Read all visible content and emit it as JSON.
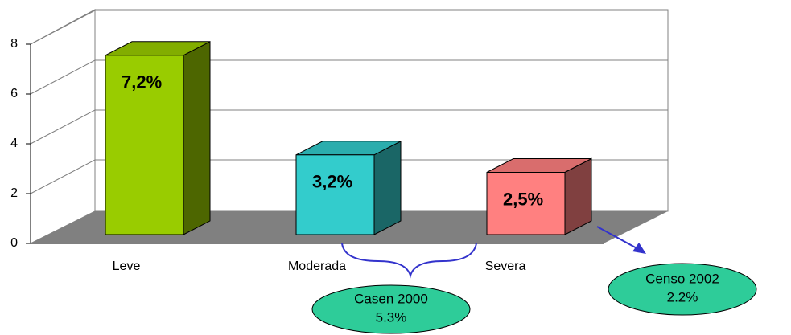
{
  "chart_data": {
    "type": "bar3d",
    "categories": [
      "Leve",
      "Moderada",
      "Severa"
    ],
    "values": [
      7.2,
      3.2,
      2.5
    ],
    "value_labels": [
      "7,2%",
      "3,2%",
      "2,5%"
    ],
    "colors": [
      "#99cc00",
      "#33cccc",
      "#ff8080"
    ],
    "ylim": [
      0,
      8
    ],
    "yticks": [
      0,
      2,
      4,
      6,
      8
    ],
    "grid": true,
    "annotations": [
      {
        "title": "Casen 2000",
        "text": "5.3%"
      },
      {
        "title": "Censo 2002",
        "text": "2.2%"
      }
    ]
  }
}
